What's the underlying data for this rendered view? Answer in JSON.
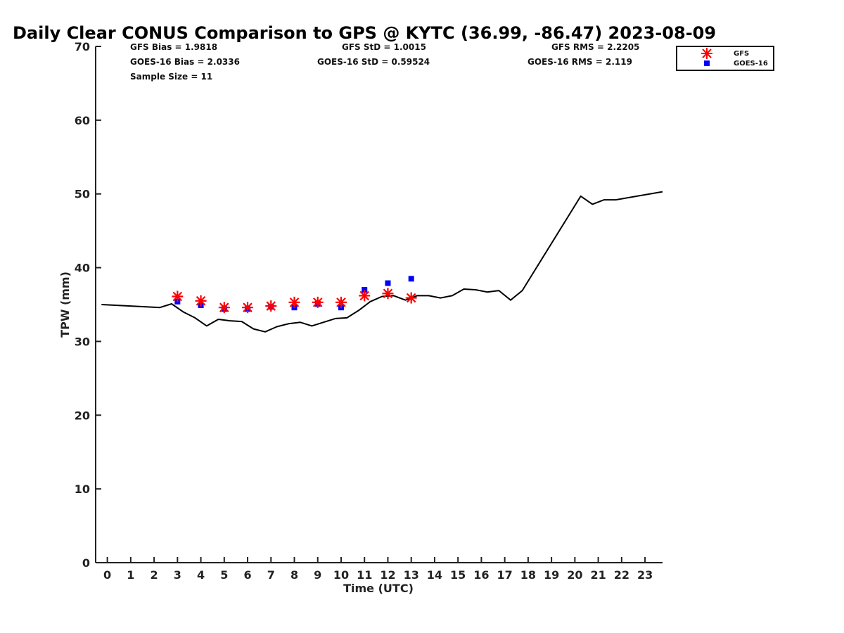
{
  "chart_data": {
    "type": "line",
    "title": "Daily Clear CONUS Comparison to GPS @ KYTC (36.99, -86.47) 2023-08-09",
    "xlabel": "Time (UTC)",
    "ylabel": "TPW (mm)",
    "xlim": [
      -0.5,
      23.75
    ],
    "ylim": [
      0,
      70
    ],
    "x_ticks": [
      0,
      1,
      2,
      3,
      4,
      5,
      6,
      7,
      8,
      9,
      10,
      11,
      12,
      13,
      14,
      15,
      16,
      17,
      18,
      19,
      20,
      21,
      22,
      23
    ],
    "x_tick_labels": [
      "0",
      "1",
      "2",
      "3",
      "4",
      "5",
      "6",
      "7",
      "8",
      "9",
      "10",
      "11",
      "12",
      "13",
      "14",
      "15",
      "16",
      "17",
      "18",
      "19",
      "20",
      "21",
      "22",
      "23"
    ],
    "y_ticks": [
      0,
      10,
      20,
      30,
      40,
      50,
      60,
      70
    ],
    "y_tick_labels": [
      "0",
      "10",
      "20",
      "30",
      "40",
      "50",
      "60",
      "70"
    ],
    "grid": false,
    "legend_position": "top-right",
    "stats": {
      "gfs_bias": "GFS Bias = 1.9818",
      "goes_bias": "GOES-16 Bias = 2.0336",
      "sample_size": "Sample Size = 11",
      "gfs_std": "GFS StD = 1.0015",
      "goes_std": "GOES-16 StD = 0.59524",
      "gfs_rms": "GFS RMS = 2.2205",
      "goes_rms": "GOES-16 RMS = 2.119"
    },
    "series": [
      {
        "kind": "line",
        "color": "#000000",
        "x": [
          -0.25,
          2.25,
          2.75,
          3.25,
          3.75,
          4.25,
          4.75,
          5.25,
          5.75,
          6.25,
          6.75,
          7.25,
          7.75,
          8.25,
          8.75,
          9.25,
          9.75,
          10.25,
          10.75,
          11.25,
          11.75,
          12.25,
          12.75,
          13.25,
          13.75,
          14.25,
          14.75,
          15.25,
          15.75,
          16.25,
          16.75,
          17.25,
          17.75,
          20.25,
          20.75,
          21.25,
          21.75,
          23.75
        ],
        "y": [
          35.0,
          34.6,
          35.1,
          34.0,
          33.2,
          32.1,
          33.0,
          32.8,
          32.7,
          31.7,
          31.3,
          32.0,
          32.4,
          32.6,
          32.1,
          32.6,
          33.1,
          33.2,
          34.2,
          35.4,
          36.1,
          36.2,
          35.6,
          36.2,
          36.2,
          35.9,
          36.2,
          37.1,
          37.0,
          36.7,
          36.9,
          35.6,
          36.9,
          49.7,
          48.6,
          49.2,
          49.2,
          50.3
        ]
      },
      {
        "name": "GFS",
        "kind": "scatter",
        "marker": "asterisk",
        "color": "#ff0000",
        "x": [
          3,
          4,
          5,
          6,
          7,
          8,
          9,
          10,
          11,
          12,
          13
        ],
        "y": [
          36.1,
          35.5,
          34.6,
          34.6,
          34.8,
          35.3,
          35.3,
          35.3,
          36.2,
          36.5,
          35.9
        ]
      },
      {
        "name": "GOES-16",
        "kind": "scatter",
        "marker": "square",
        "color": "#0000ff",
        "x": [
          3,
          4,
          5,
          6,
          7,
          8,
          9,
          10,
          11,
          12,
          13
        ],
        "y": [
          35.4,
          34.9,
          34.4,
          34.4,
          34.7,
          34.6,
          35.1,
          34.6,
          37.0,
          37.9,
          38.5
        ]
      }
    ]
  }
}
